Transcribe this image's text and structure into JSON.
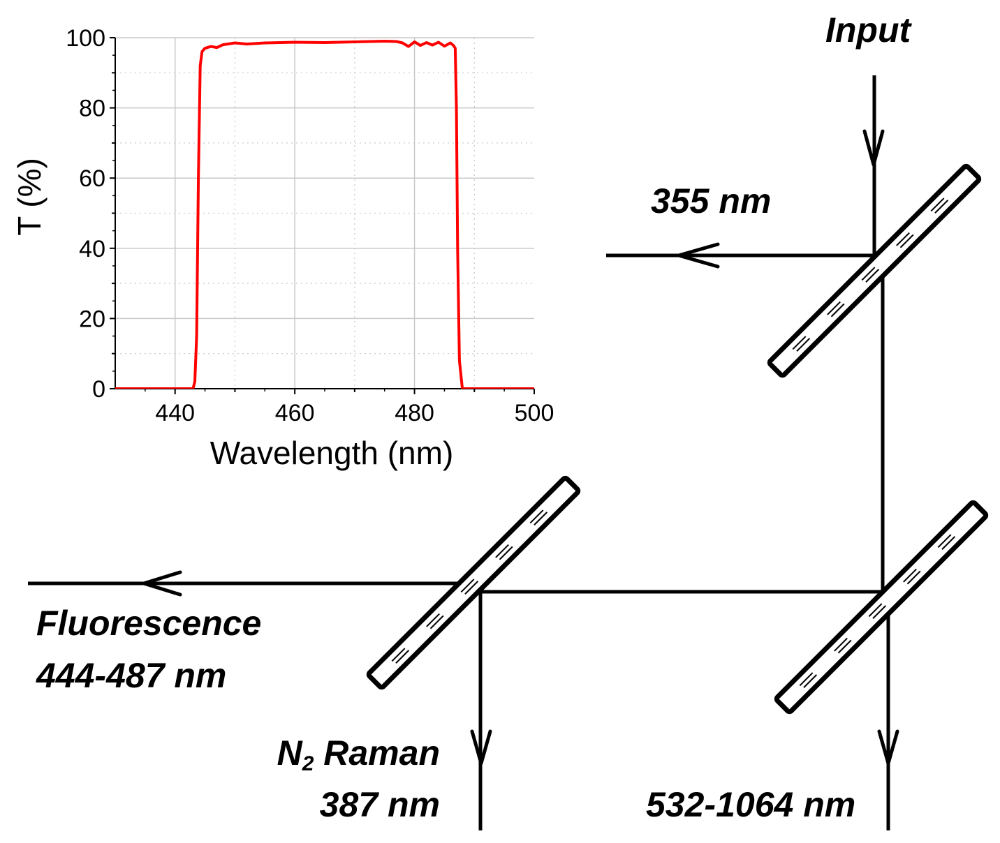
{
  "labels": {
    "input": "Input",
    "reflect_355": "355 nm",
    "fluorescence_line1": "Fluorescence",
    "fluorescence_line2": "444-487 nm",
    "raman_line1_main": "N",
    "raman_line1_sub": "2",
    "raman_line1_rest": " Raman",
    "raman_line2": "387 nm",
    "transmit_532": "532-1064 nm"
  },
  "chart_data": {
    "type": "line",
    "xlabel": "Wavelength (nm)",
    "ylabel": "T (%)",
    "xlim": [
      430,
      500
    ],
    "ylim": [
      0,
      100
    ],
    "x_ticks": [
      "440",
      "460",
      "480",
      "500"
    ],
    "y_ticks": [
      "0",
      "20",
      "40",
      "60",
      "80",
      "100"
    ],
    "grid": true,
    "series": [
      {
        "color": "#ff0000",
        "x": [
          430,
          443.0,
          443.3,
          443.6,
          443.9,
          444.2,
          444.5,
          445,
          446,
          447,
          448,
          450,
          452,
          455,
          460,
          465,
          470,
          475,
          477,
          478,
          479,
          480,
          481,
          482,
          483,
          484,
          485,
          486,
          486.5,
          486.8,
          487.0,
          487.2,
          487.5,
          488,
          500
        ],
        "y": [
          0,
          0,
          2,
          15,
          60,
          92,
          96,
          97,
          97.5,
          97.2,
          98,
          98.5,
          98.2,
          98.5,
          98.7,
          98.6,
          98.8,
          99,
          98.9,
          98.5,
          97.5,
          98.8,
          97.8,
          98.6,
          97.9,
          98.7,
          97.6,
          98.5,
          97.8,
          97,
          80,
          40,
          8,
          0,
          0
        ]
      }
    ]
  }
}
